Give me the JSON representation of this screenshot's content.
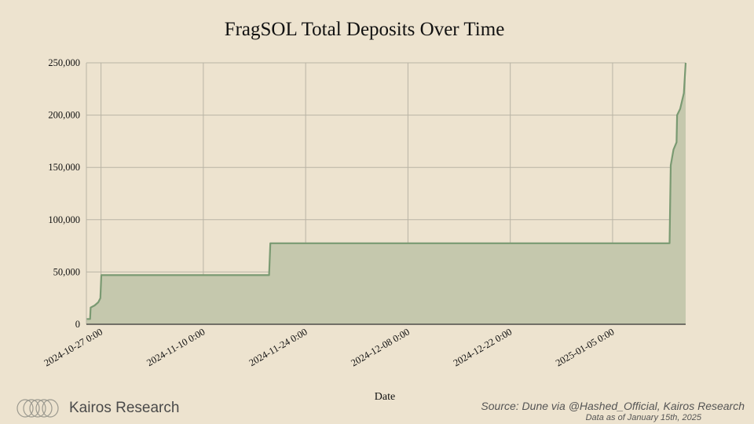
{
  "chart_data": {
    "type": "area",
    "title": "FragSOL Total Deposits Over Time",
    "xlabel": "Date",
    "ylabel": "",
    "ylim": [
      0,
      250000
    ],
    "yticks": [
      0,
      50000,
      100000,
      150000,
      200000,
      250000
    ],
    "ytick_labels": [
      "0",
      "50,000",
      "100,000",
      "150,000",
      "200,000",
      "250,000"
    ],
    "xlim": [
      "2024-10-25",
      "2025-01-15"
    ],
    "xticks": [
      "2024-10-27",
      "2024-11-10",
      "2024-11-24",
      "2024-12-08",
      "2024-12-22",
      "2025-01-05"
    ],
    "xtick_labels": [
      "2024-10-27 0:00",
      "2024-11-10 0:00",
      "2024-11-24 0:00",
      "2024-12-08 0:00",
      "2024-12-22 0:00",
      "2025-01-05 0:00"
    ],
    "grid": true,
    "series": [
      {
        "color": "#7a9a72",
        "fill": "#c5c8ad",
        "points": [
          [
            "2024-10-25 00:00",
            5000
          ],
          [
            "2024-10-25 12:00",
            5000
          ],
          [
            "2024-10-25 14:00",
            16000
          ],
          [
            "2024-10-26 03:00",
            18000
          ],
          [
            "2024-10-26 15:00",
            21000
          ],
          [
            "2024-10-26 22:00",
            25000
          ],
          [
            "2024-10-27 01:00",
            47000
          ],
          [
            "2024-11-19 00:00",
            47000
          ],
          [
            "2024-11-19 04:00",
            77500
          ],
          [
            "2025-01-12 19:00",
            77500
          ],
          [
            "2025-01-12 23:00",
            152000
          ],
          [
            "2025-01-13 08:00",
            167000
          ],
          [
            "2025-01-13 18:00",
            174000
          ],
          [
            "2025-01-13 20:00",
            200000
          ],
          [
            "2025-01-14 06:00",
            206000
          ],
          [
            "2025-01-14 18:00",
            221000
          ],
          [
            "2025-01-15 00:00",
            250000
          ]
        ]
      }
    ]
  },
  "branding": {
    "name": "Kairos Research",
    "source": "Source: Dune via @Hashed_Official, Kairos Research",
    "as_of": "Data as of January 15th, 2025"
  },
  "colors": {
    "background": "#ede3cf",
    "grid": "#b9b4a5",
    "line": "#7a9a72",
    "fill": "#c5c8ad"
  }
}
